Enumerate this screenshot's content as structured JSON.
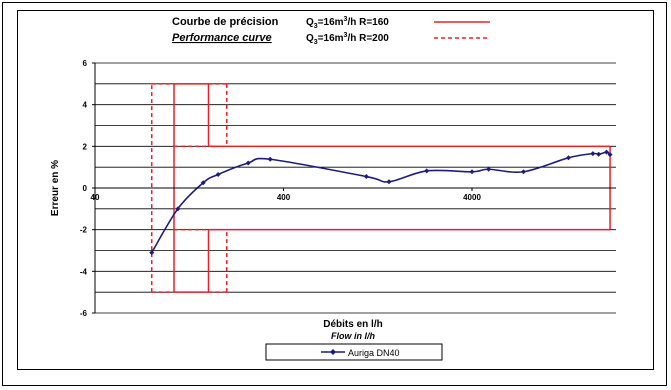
{
  "chart_data": {
    "type": "line",
    "title": {
      "main": "Courbe de précision",
      "main_translation": "Performance curve"
    },
    "tolerance_legend": [
      {
        "label_prefix": "Q",
        "label_sub": "3",
        "label_mid": "=16m",
        "label_sup": "3",
        "label_suffix": "/h R=160",
        "line_style": "solid"
      },
      {
        "label_prefix": "Q",
        "label_sub": "3",
        "label_mid": "=16m",
        "label_sup": "3",
        "label_suffix": "/h R=200",
        "line_style": "dashed"
      }
    ],
    "xlabel": "Débits en l/h",
    "xlabel_translation": "Flow in l/h",
    "ylabel": "Erreur en %",
    "x_scale": "log",
    "xlim": [
      40,
      20000
    ],
    "ylim": [
      -6,
      6
    ],
    "x_ticks": [
      40,
      400,
      4000
    ],
    "y_ticks": [
      6,
      4,
      2,
      0,
      -2,
      -4,
      -6
    ],
    "grid": "horizontal",
    "legend_position": "bottom-center",
    "series": [
      {
        "name": "Auriga DN40",
        "color": "#1c1c7c",
        "points": [
          [
            80,
            -3.1
          ],
          [
            110,
            -1.0
          ],
          [
            150,
            0.25
          ],
          [
            180,
            0.65
          ],
          [
            260,
            1.2
          ],
          [
            340,
            1.38
          ],
          [
            1100,
            0.55
          ],
          [
            1450,
            0.3
          ],
          [
            2300,
            0.82
          ],
          [
            4000,
            0.78
          ],
          [
            4900,
            0.9
          ],
          [
            7500,
            0.78
          ],
          [
            13000,
            1.45
          ],
          [
            17500,
            1.65
          ],
          [
            18800,
            1.62
          ],
          [
            20700,
            1.72
          ],
          [
            21600,
            1.6
          ]
        ]
      }
    ],
    "tolerance_envelopes": [
      {
        "style": "solid",
        "color": "#e8202a",
        "segments": [
          [
            [
              105,
              -5
            ],
            [
              105,
              5
            ]
          ],
          [
            [
              105,
              5
            ],
            [
              160,
              5
            ]
          ],
          [
            [
              160,
              5
            ],
            [
              160,
              2
            ]
          ],
          [
            [
              160,
              2
            ],
            [
              21600,
              2
            ]
          ],
          [
            [
              21600,
              2
            ],
            [
              21600,
              -2
            ]
          ],
          [
            [
              21600,
              -2
            ],
            [
              160,
              -2
            ]
          ],
          [
            [
              160,
              -2
            ],
            [
              160,
              -5
            ]
          ],
          [
            [
              160,
              -5
            ],
            [
              105,
              -5
            ]
          ]
        ]
      },
      {
        "style": "dashed",
        "color": "#e8202a",
        "segments": [
          [
            [
              80,
              -5
            ],
            [
              80,
              5
            ]
          ],
          [
            [
              80,
              5
            ],
            [
              105,
              5
            ]
          ],
          [
            [
              80,
              -5
            ],
            [
              105,
              -5
            ]
          ],
          [
            [
              105,
              2
            ],
            [
              160,
              2
            ]
          ],
          [
            [
              105,
              -2
            ],
            [
              160,
              -2
            ]
          ],
          [
            [
              160,
              5
            ],
            [
              200,
              5
            ]
          ],
          [
            [
              200,
              5
            ],
            [
              200,
              2
            ]
          ],
          [
            [
              160,
              -5
            ],
            [
              200,
              -5
            ]
          ],
          [
            [
              200,
              -5
            ],
            [
              200,
              -2
            ]
          ]
        ]
      }
    ]
  }
}
